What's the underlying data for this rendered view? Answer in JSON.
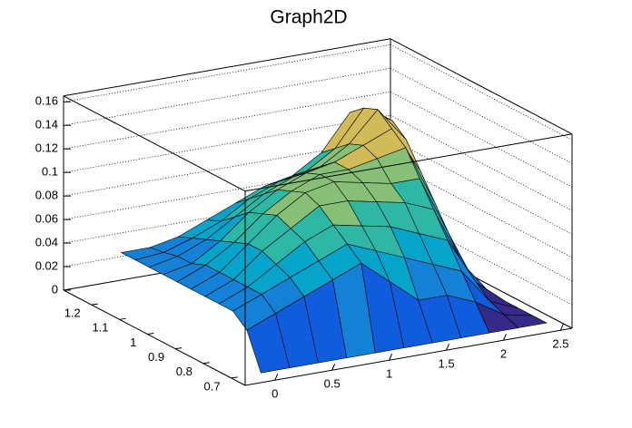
{
  "chart_data": {
    "type": "surface",
    "title": "Graph2D",
    "x": [
      0,
      0.25,
      0.5,
      0.75,
      1,
      1.25,
      1.5,
      1.75,
      2,
      2.25,
      2.5
    ],
    "y": [
      0.7,
      0.75,
      0.8,
      0.85,
      0.9,
      0.95,
      1.0,
      1.05,
      1.1,
      1.15,
      1.2
    ],
    "z": [
      [
        0,
        0,
        0,
        0,
        0,
        0,
        0,
        0,
        0,
        0,
        0
      ],
      [
        0.03,
        0.04,
        0.05,
        0.06,
        0.07,
        0.05,
        0.03,
        0.03,
        0.02,
        0.005,
        0
      ],
      [
        0.04,
        0.05,
        0.06,
        0.07,
        0.08,
        0.07,
        0.06,
        0.05,
        0.04,
        0.01,
        0
      ],
      [
        0.04,
        0.05,
        0.065,
        0.08,
        0.09,
        0.085,
        0.08,
        0.07,
        0.06,
        0.02,
        0
      ],
      [
        0.04,
        0.05,
        0.07,
        0.085,
        0.1,
        0.1,
        0.095,
        0.09,
        0.08,
        0.03,
        0
      ],
      [
        0.04,
        0.05,
        0.07,
        0.09,
        0.105,
        0.11,
        0.105,
        0.1,
        0.1,
        0.05,
        0
      ],
      [
        0.04,
        0.05,
        0.065,
        0.085,
        0.1,
        0.11,
        0.11,
        0.115,
        0.12,
        0.07,
        0
      ],
      [
        0.04,
        0.045,
        0.06,
        0.08,
        0.095,
        0.105,
        0.11,
        0.12,
        0.13,
        0.09,
        0
      ],
      [
        0.04,
        0.045,
        0.055,
        0.07,
        0.085,
        0.095,
        0.1,
        0.115,
        0.14,
        0.11,
        0
      ],
      [
        0.04,
        0.042,
        0.05,
        0.06,
        0.075,
        0.085,
        0.09,
        0.105,
        0.135,
        0.12,
        0
      ],
      [
        0.04,
        0.04,
        0.045,
        0.055,
        0.065,
        0.075,
        0.08,
        0.095,
        0.125,
        0.12,
        0
      ]
    ],
    "xlim": [
      -0.26,
      2.6
    ],
    "ylim": [
      0.65,
      1.3
    ],
    "zlim": [
      0,
      0.165
    ],
    "xticks": [
      0,
      0.5,
      1,
      1.5,
      2,
      2.5
    ],
    "yticks": [
      0.7,
      0.8,
      0.9,
      1,
      1.1,
      1.2
    ],
    "zticks": [
      0,
      0.02,
      0.04,
      0.06,
      0.08,
      0.1,
      0.12,
      0.14,
      0.16
    ],
    "grid": true,
    "palette": [
      "#352a87",
      "#0f5cdd",
      "#1481d6",
      "#06a4ca",
      "#2eb7a4",
      "#87bf77",
      "#d1bb59",
      "#fec832",
      "#f9fb0e"
    ]
  }
}
